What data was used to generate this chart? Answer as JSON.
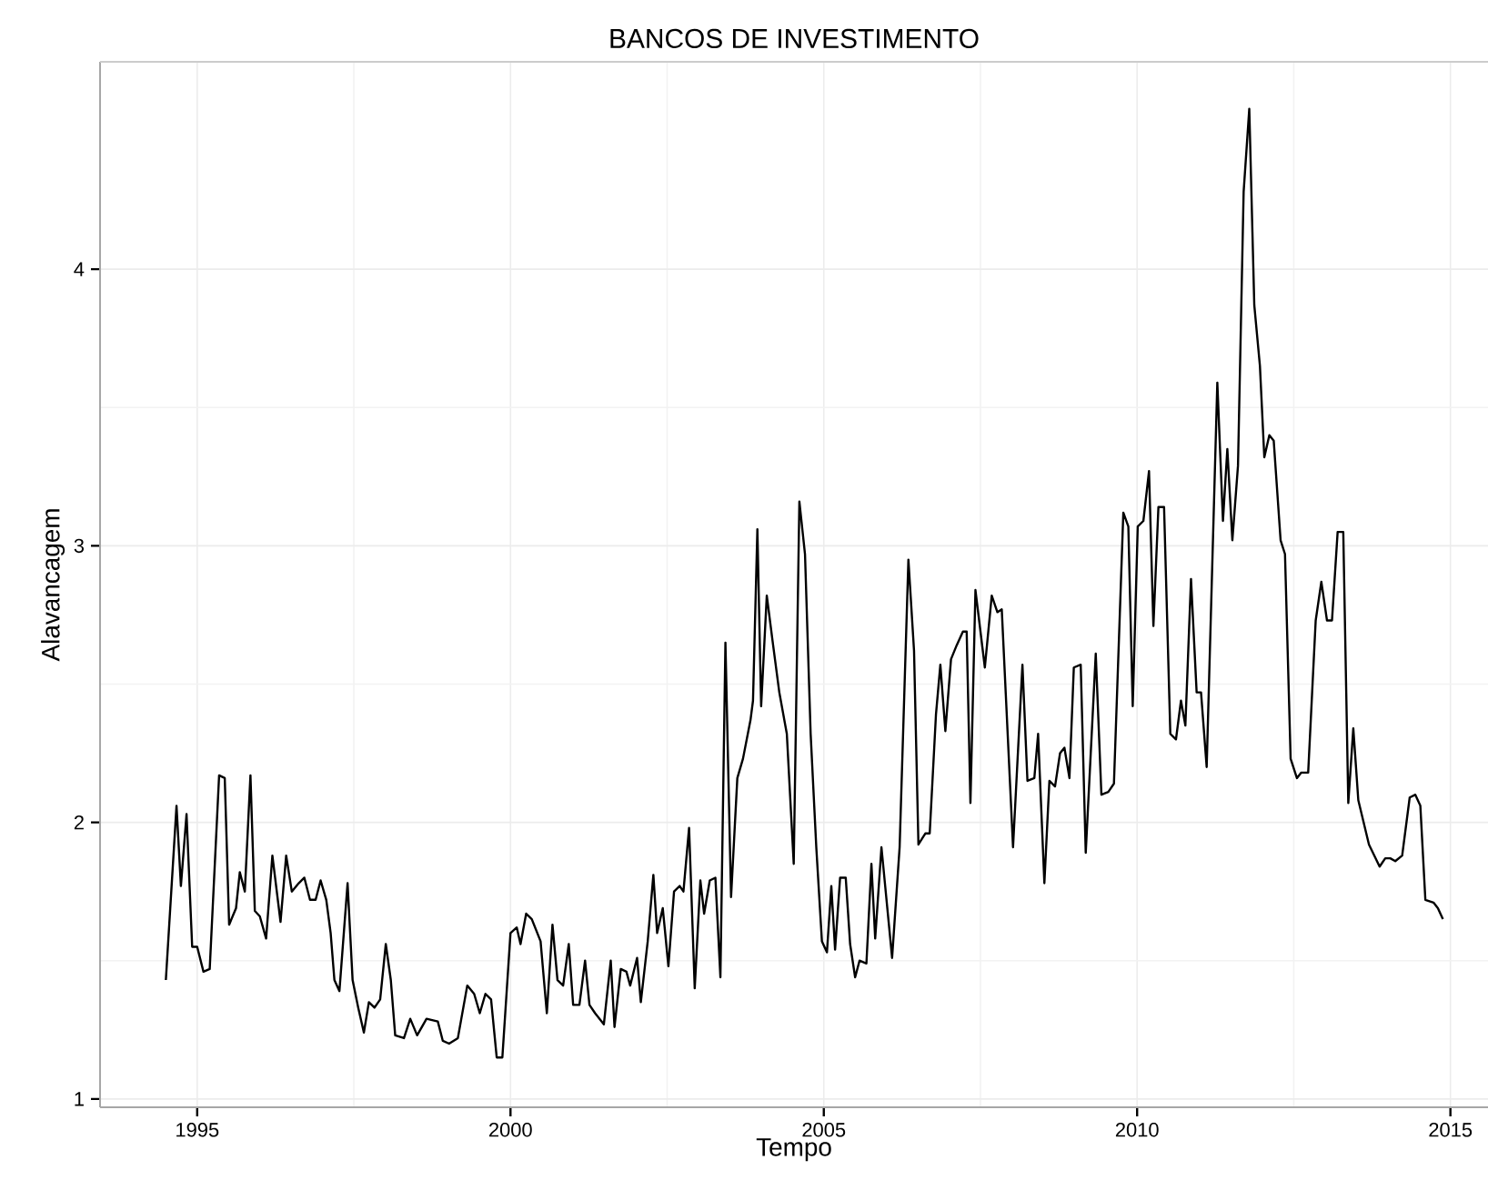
{
  "chart_data": {
    "type": "line",
    "title": "BANCOS DE INVESTIMENTO",
    "xlabel": "Tempo",
    "ylabel": "Alavancagem",
    "x": [
      1994.5,
      1994.67,
      1994.74,
      1994.83,
      1994.92,
      1995.0,
      1995.1,
      1995.2,
      1995.35,
      1995.44,
      1995.51,
      1995.62,
      1995.68,
      1995.76,
      1995.85,
      1995.92,
      1996.0,
      1996.1,
      1996.2,
      1996.33,
      1996.42,
      1996.51,
      1996.62,
      1996.71,
      1996.8,
      1996.89,
      1996.97,
      1997.06,
      1997.13,
      1997.19,
      1997.27,
      1997.4,
      1997.48,
      1997.57,
      1997.66,
      1997.74,
      1997.83,
      1997.92,
      1998.01,
      1998.09,
      1998.16,
      1998.3,
      1998.4,
      1998.51,
      1998.66,
      1998.84,
      1998.92,
      1999.02,
      1999.16,
      1999.31,
      1999.42,
      1999.51,
      1999.6,
      1999.69,
      1999.78,
      1999.87,
      2000.0,
      2000.1,
      2000.16,
      2000.25,
      2000.34,
      2000.48,
      2000.58,
      2000.67,
      2000.75,
      2000.84,
      2000.93,
      2001.0,
      2001.1,
      2001.19,
      2001.26,
      2001.35,
      2001.49,
      2001.6,
      2001.66,
      2001.76,
      2001.85,
      2001.91,
      2002.02,
      2002.08,
      2002.19,
      2002.28,
      2002.34,
      2002.43,
      2002.52,
      2002.61,
      2002.7,
      2002.76,
      2002.85,
      2002.94,
      2003.03,
      2003.09,
      2003.18,
      2003.27,
      2003.35,
      2003.43,
      2003.52,
      2003.62,
      2003.71,
      2003.83,
      2003.87,
      2003.94,
      2004.0,
      2004.09,
      2004.18,
      2004.29,
      2004.41,
      2004.52,
      2004.61,
      2004.7,
      2004.79,
      2004.88,
      2004.97,
      2005.05,
      2005.12,
      2005.18,
      2005.26,
      2005.35,
      2005.42,
      2005.5,
      2005.57,
      2005.68,
      2005.76,
      2005.82,
      2005.92,
      2006.09,
      2006.21,
      2006.35,
      2006.44,
      2006.51,
      2006.62,
      2006.69,
      2006.79,
      2006.86,
      2006.94,
      2007.03,
      2007.12,
      2007.22,
      2007.28,
      2007.34,
      2007.42,
      2007.57,
      2007.68,
      2007.77,
      2007.84,
      2008.02,
      2008.17,
      2008.25,
      2008.36,
      2008.42,
      2008.52,
      2008.6,
      2008.69,
      2008.77,
      2008.84,
      2008.92,
      2008.99,
      2009.1,
      2009.18,
      2009.34,
      2009.43,
      2009.54,
      2009.63,
      2009.78,
      2009.86,
      2009.93,
      2010.01,
      2010.1,
      2010.19,
      2010.26,
      2010.34,
      2010.43,
      2010.53,
      2010.62,
      2010.7,
      2010.77,
      2010.86,
      2010.95,
      2011.02,
      2011.11,
      2011.28,
      2011.37,
      2011.44,
      2011.52,
      2011.61,
      2011.7,
      2011.79,
      2011.87,
      2011.96,
      2012.03,
      2012.11,
      2012.18,
      2012.29,
      2012.36,
      2012.45,
      2012.55,
      2012.62,
      2012.73,
      2012.85,
      2012.94,
      2013.03,
      2013.11,
      2013.2,
      2013.29,
      2013.37,
      2013.45,
      2013.53,
      2013.7,
      2013.87,
      2013.96,
      2014.04,
      2014.12,
      2014.23,
      2014.35,
      2014.44,
      2014.52,
      2014.6,
      2014.73,
      2014.8,
      2014.88
    ],
    "series": [
      {
        "color": "#000000",
        "values": [
          1.43,
          2.06,
          1.77,
          2.03,
          1.55,
          1.55,
          1.46,
          1.47,
          2.17,
          2.16,
          1.63,
          1.69,
          1.82,
          1.75,
          2.17,
          1.68,
          1.66,
          1.58,
          1.88,
          1.64,
          1.88,
          1.75,
          1.78,
          1.8,
          1.72,
          1.72,
          1.79,
          1.72,
          1.6,
          1.43,
          1.39,
          1.78,
          1.43,
          1.33,
          1.24,
          1.35,
          1.33,
          1.36,
          1.56,
          1.43,
          1.23,
          1.22,
          1.29,
          1.23,
          1.29,
          1.28,
          1.21,
          1.2,
          1.22,
          1.41,
          1.38,
          1.31,
          1.38,
          1.36,
          1.15,
          1.15,
          1.6,
          1.62,
          1.56,
          1.67,
          1.65,
          1.57,
          1.31,
          1.63,
          1.43,
          1.41,
          1.56,
          1.34,
          1.34,
          1.5,
          1.34,
          1.31,
          1.27,
          1.5,
          1.26,
          1.47,
          1.46,
          1.41,
          1.51,
          1.35,
          1.57,
          1.81,
          1.6,
          1.69,
          1.48,
          1.75,
          1.77,
          1.75,
          1.98,
          1.4,
          1.79,
          1.67,
          1.79,
          1.8,
          1.44,
          2.65,
          1.73,
          2.16,
          2.23,
          2.37,
          2.44,
          3.06,
          2.42,
          2.82,
          2.66,
          2.47,
          2.32,
          1.85,
          3.16,
          2.97,
          2.32,
          1.91,
          1.57,
          1.53,
          1.77,
          1.54,
          1.8,
          1.8,
          1.56,
          1.44,
          1.5,
          1.49,
          1.85,
          1.58,
          1.91,
          1.51,
          1.91,
          2.95,
          2.62,
          1.92,
          1.96,
          1.96,
          2.39,
          2.57,
          2.33,
          2.59,
          2.64,
          2.69,
          2.69,
          2.07,
          2.84,
          2.56,
          2.82,
          2.76,
          2.77,
          1.91,
          2.57,
          2.15,
          2.16,
          2.32,
          1.78,
          2.15,
          2.13,
          2.25,
          2.27,
          2.16,
          2.56,
          2.57,
          1.89,
          2.61,
          2.1,
          2.11,
          2.14,
          3.12,
          3.07,
          2.42,
          3.07,
          3.09,
          3.27,
          2.71,
          3.14,
          3.14,
          2.32,
          2.3,
          2.44,
          2.35,
          2.88,
          2.47,
          2.47,
          2.2,
          3.59,
          3.09,
          3.35,
          3.02,
          3.29,
          4.28,
          4.58,
          3.87,
          3.65,
          3.32,
          3.4,
          3.38,
          3.02,
          2.97,
          2.23,
          2.16,
          2.18,
          2.18,
          2.73,
          2.87,
          2.73,
          2.73,
          3.05,
          3.05,
          2.07,
          2.34,
          2.08,
          1.92,
          1.84,
          1.87,
          1.87,
          1.86,
          1.88,
          2.09,
          2.1,
          2.06,
          1.72,
          1.71,
          1.69,
          1.65
        ]
      }
    ],
    "xlim": [
      1993.45,
      2015.6
    ],
    "ylim": [
      0.97,
      4.75
    ],
    "xticks": [
      1995,
      2000,
      2005,
      2010,
      2015
    ],
    "yticks": [
      1,
      2,
      3,
      4
    ],
    "grid": true,
    "marker": "none",
    "line_style": "solid"
  }
}
